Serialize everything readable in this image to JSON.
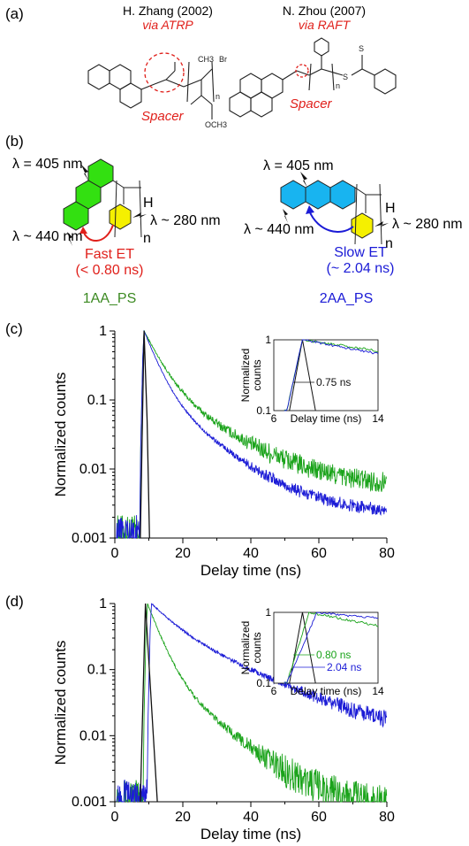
{
  "panels": {
    "a": "(a)",
    "b": "(b)",
    "c": "(c)",
    "d": "(d)"
  },
  "panel_a": {
    "ref1": {
      "author": "H. Zhang (2002)",
      "method": "via ATRP"
    },
    "ref2": {
      "author": "N. Zhou (2007)",
      "method": "via RAFT"
    },
    "spacer": "Spacer",
    "struct_labels": {
      "ch3": "CH3",
      "br": "Br",
      "n": "n",
      "s": "S",
      "och3": "OCH3"
    }
  },
  "panel_b": {
    "left": {
      "lambda_top": "λ = 405 nm",
      "lambda_bottom": "λ ~ 440 nm",
      "lambda_right": "λ ~ 280 nm",
      "h": "H",
      "n": "n",
      "et": "Fast ET",
      "et_time": "(< 0.80 ns)",
      "sample": "1AA_PS"
    },
    "right": {
      "lambda_top": "λ = 405 nm",
      "lambda_bottom": "λ ~ 440 nm",
      "lambda_right": "λ ~ 280 nm",
      "h": "H",
      "n": "n",
      "et": "Slow ET",
      "et_time": "(~ 2.04 ns)",
      "sample": "2AA_PS"
    },
    "colors": {
      "green_ring": "#33e011",
      "yellow_ring": "#f5f000",
      "blue_ring": "#18b4f0",
      "green_text": "#3c8a22",
      "blue_text": "#1b1bd6",
      "red_text": "#e0201b"
    }
  },
  "chart_data": [
    {
      "id": "c",
      "type": "line",
      "xlabel": "Delay time (ns)",
      "ylabel": "Normalized counts",
      "x_ticks": [
        "0",
        "20",
        "40",
        "60",
        "80"
      ],
      "y_ticks": [
        "0.001",
        "0.01",
        "0.1",
        "1"
      ],
      "xlim": [
        0,
        80
      ],
      "ylim": [
        0.001,
        1
      ],
      "yscale": "log",
      "series": [
        {
          "color": "#1aa31a",
          "peak_x": 8.6,
          "tau_fast": 4.0,
          "tau_slow": 13.5,
          "frac": 0.82,
          "floor": 0.0055,
          "noise": 0.35,
          "x": [
            8.6,
            20,
            30,
            40,
            50,
            60,
            70,
            80
          ],
          "y": [
            1,
            0.12,
            0.04,
            0.018,
            0.01,
            0.007,
            0.006,
            0.006
          ]
        },
        {
          "color": "#1c1cd6",
          "peak_x": 8.6,
          "tau_fast": 3.2,
          "tau_slow": 11.0,
          "frac": 0.85,
          "floor": 0.0024,
          "noise": 0.22,
          "x": [
            8.6,
            20,
            30,
            40,
            50,
            60,
            70,
            80
          ],
          "y": [
            1,
            0.1,
            0.03,
            0.012,
            0.006,
            0.004,
            0.003,
            0.0025
          ]
        },
        {
          "color": "#111111",
          "irf": true,
          "x": [
            7.5,
            8.6,
            9.5,
            10.2
          ],
          "y": [
            0.001,
            1,
            0.05,
            0.001
          ]
        }
      ],
      "inset": {
        "ylabel": "Normalized counts",
        "xlabel": "Delay time (ns)",
        "x_ticks": [
          "6",
          "14"
        ],
        "y_ticks": [
          "0.1",
          "1"
        ],
        "xlim": [
          6,
          14
        ],
        "ylim": [
          0.1,
          1
        ],
        "annotations": [
          {
            "text": "0.75 ns",
            "color": "#111111"
          }
        ]
      }
    },
    {
      "id": "d",
      "type": "line",
      "xlabel": "Delay time (ns)",
      "ylabel": "Normalized counts",
      "x_ticks": [
        "0",
        "20",
        "40",
        "60",
        "80"
      ],
      "y_ticks": [
        "0.001",
        "0.01",
        "0.1",
        "1"
      ],
      "xlim": [
        0,
        80
      ],
      "ylim": [
        0.001,
        1
      ],
      "yscale": "log",
      "series": [
        {
          "color": "#1aa31a",
          "peak_x": 9.6,
          "tau_fast": 3.0,
          "tau_slow": 10.0,
          "frac": 0.88,
          "floor": 0.0009,
          "noise": 0.6,
          "x": [
            9.6,
            20,
            30,
            40,
            50,
            60,
            70,
            80
          ],
          "y": [
            1,
            0.14,
            0.03,
            0.01,
            0.004,
            0.002,
            0.0012,
            0.001
          ]
        },
        {
          "color": "#1c1cd6",
          "peak_x": 10.8,
          "tau_fast": 6.0,
          "tau_slow": 18.0,
          "frac": 0.55,
          "floor": 0.008,
          "noise": 0.3,
          "x": [
            10.8,
            20,
            30,
            40,
            50,
            60,
            70,
            80
          ],
          "y": [
            1,
            0.45,
            0.2,
            0.09,
            0.04,
            0.02,
            0.012,
            0.009
          ]
        },
        {
          "color": "#111111",
          "irf": true,
          "x": [
            7.5,
            9.0,
            10.5,
            12.5
          ],
          "y": [
            0.001,
            1,
            0.05,
            0.001
          ]
        }
      ],
      "inset": {
        "ylabel": "Normalized counts",
        "xlabel": "Delay time (ns)",
        "x_ticks": [
          "6",
          "14"
        ],
        "y_ticks": [
          "0.1",
          "1"
        ],
        "xlim": [
          6,
          14
        ],
        "ylim": [
          0.1,
          1
        ],
        "annotations": [
          {
            "text": "0.80 ns",
            "color": "#1aa31a"
          },
          {
            "text": "2.04 ns",
            "color": "#1c1cd6"
          }
        ]
      }
    }
  ]
}
